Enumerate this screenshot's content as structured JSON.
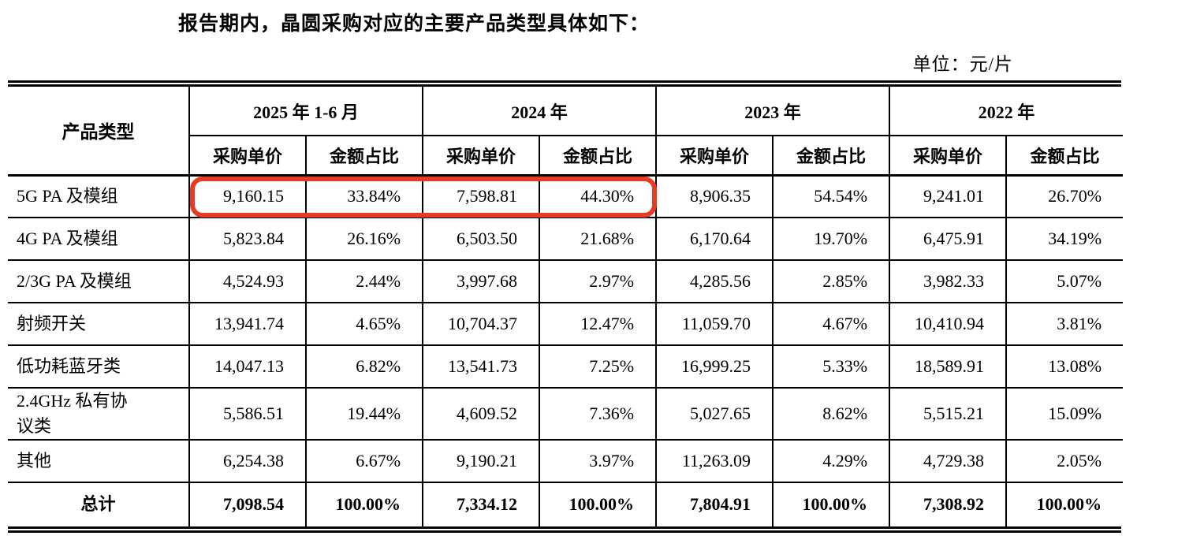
{
  "page": {
    "intro_text": "报告期内，晶圆采购对应的主要产品类型具体如下：",
    "unit_label": "单位：元/片"
  },
  "table": {
    "corner_header": "产品类型",
    "year_groups": [
      "2025 年 1-6 月",
      "2024 年",
      "2023 年",
      "2022 年"
    ],
    "sub_headers": [
      "采购单价",
      "金额占比"
    ],
    "rows": [
      {
        "label": "5G PA 及模组",
        "values": [
          "9,160.15",
          "33.84%",
          "7,598.81",
          "44.30%",
          "8,906.35",
          "54.54%",
          "9,241.01",
          "26.70%"
        ],
        "highlighted": true
      },
      {
        "label": "4G PA 及模组",
        "values": [
          "5,823.84",
          "26.16%",
          "6,503.50",
          "21.68%",
          "6,170.64",
          "19.70%",
          "6,475.91",
          "34.19%"
        ],
        "highlighted": false
      },
      {
        "label": "2/3G PA 及模组",
        "values": [
          "4,524.93",
          "2.44%",
          "3,997.68",
          "2.97%",
          "4,285.56",
          "2.85%",
          "3,982.33",
          "5.07%"
        ],
        "highlighted": false
      },
      {
        "label": "射频开关",
        "values": [
          "13,941.74",
          "4.65%",
          "10,704.37",
          "12.47%",
          "11,059.70",
          "4.67%",
          "10,410.94",
          "3.81%"
        ],
        "highlighted": false
      },
      {
        "label": "低功耗蓝牙类",
        "values": [
          "14,047.13",
          "6.82%",
          "13,541.73",
          "7.25%",
          "16,999.25",
          "5.33%",
          "18,589.91",
          "13.08%"
        ],
        "highlighted": false
      },
      {
        "label": "2.4GHz 私有协\n议类",
        "values": [
          "5,586.51",
          "19.44%",
          "4,609.52",
          "7.36%",
          "5,027.65",
          "8.62%",
          "5,515.21",
          "15.09%"
        ],
        "highlighted": false
      },
      {
        "label": "其他",
        "values": [
          "6,254.38",
          "6.67%",
          "9,190.21",
          "3.97%",
          "11,263.09",
          "4.29%",
          "4,729.38",
          "2.05%"
        ],
        "highlighted": false
      }
    ],
    "total_row": {
      "label": "总计",
      "values": [
        "7,098.54",
        "100.00%",
        "7,334.12",
        "100.00%",
        "7,804.91",
        "100.00%",
        "7,308.92",
        "100.00%"
      ]
    }
  },
  "highlight": {
    "color": "#e63c26"
  }
}
